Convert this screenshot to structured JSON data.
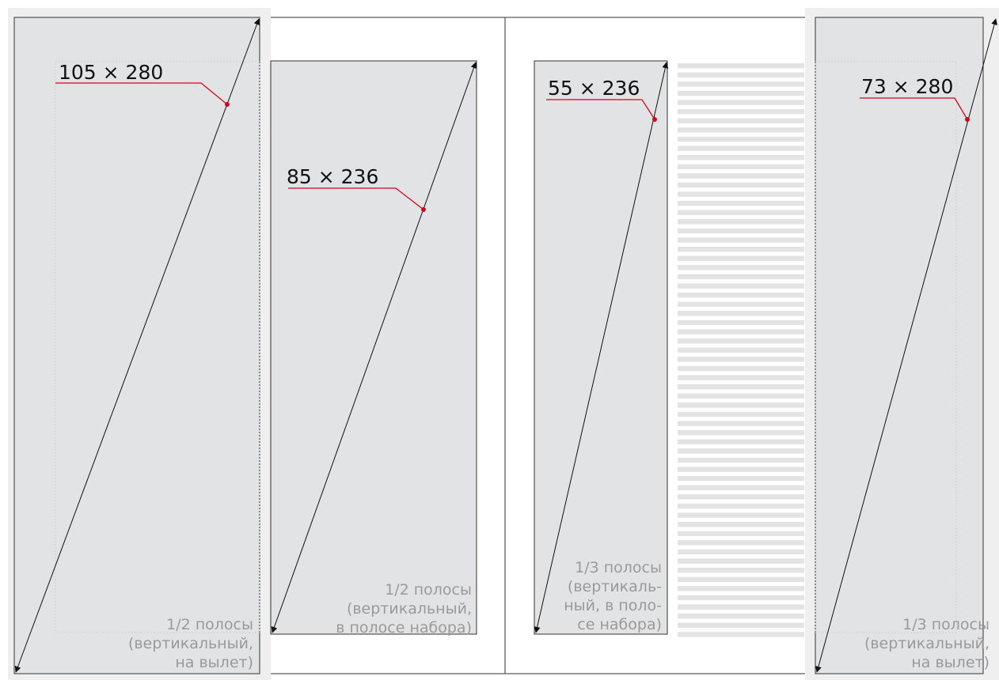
{
  "colors": {
    "block_fill": "#e2e3e5",
    "bleed_fill": "#efefef",
    "leader_red": "#cc0a1f",
    "outline": "#333333",
    "caption_gray": "#9a9a9a",
    "stripe": "#e3e3e3"
  },
  "blocks": [
    {
      "id": "half-bleed",
      "dimension": "105 × 280",
      "caption": [
        "1/2 полосы",
        "(вертикальный,",
        "на вылет)"
      ]
    },
    {
      "id": "half-type",
      "dimension": "85 × 236",
      "caption": [
        "1/2 полосы",
        "(вертикальный,",
        "в полосе набора)"
      ]
    },
    {
      "id": "third-type",
      "dimension": "55 × 236",
      "caption": [
        "1/3 полосы",
        "(вертикаль-",
        "ный, в поло-",
        "се набора)"
      ]
    },
    {
      "id": "third-bleed",
      "dimension": "73 × 280",
      "caption": [
        "1/3 полосы",
        "(вертикальный,",
        "на вылет)"
      ]
    }
  ]
}
